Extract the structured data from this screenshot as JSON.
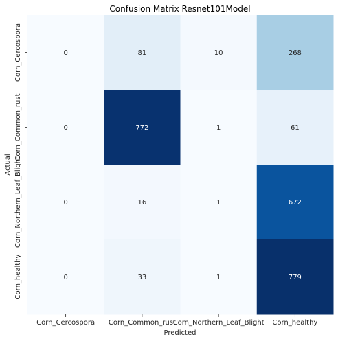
{
  "chart_data": {
    "type": "heatmap",
    "title": "Confusion Matrix Resnet101Model",
    "xlabel": "Predicted",
    "ylabel": "Actual",
    "x_categories": [
      "Corn_Cercospora",
      "Corn_Common_rust",
      "Corn_Northern_Leaf_Blight",
      "Corn_healthy"
    ],
    "y_categories": [
      "Corn_Cercospora",
      "Corn_Common_rust",
      "Corn_Northern_Leaf_Blight",
      "Corn_healthy"
    ],
    "values": [
      [
        0,
        81,
        10,
        268
      ],
      [
        0,
        772,
        1,
        61
      ],
      [
        0,
        16,
        1,
        672
      ],
      [
        0,
        33,
        1,
        779
      ]
    ],
    "colormap": "Blues",
    "vmin": 0,
    "vmax": 779,
    "colorbar": false,
    "grid": false
  }
}
